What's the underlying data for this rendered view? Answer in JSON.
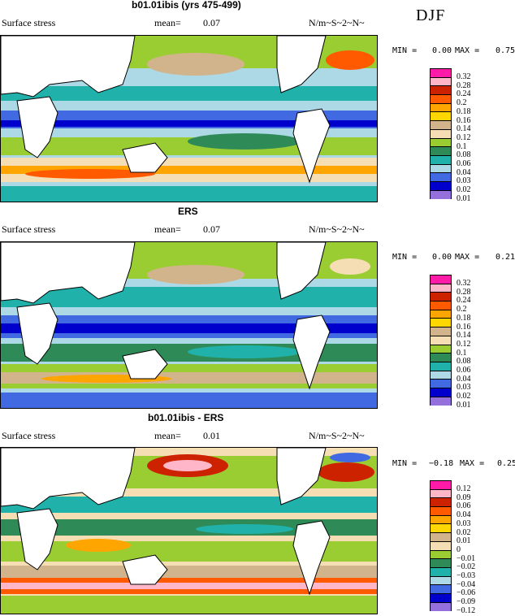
{
  "season_label": "DJF",
  "panels": [
    {
      "title": "b01.01ibis (yrs 475-499)",
      "field_label": "Surface stress",
      "mean_label": "mean=",
      "mean_value": "0.07",
      "units": "N/m~S~2~N~",
      "min_label": "MIN =",
      "min_value": "0.00",
      "max_label": "MAX =",
      "max_value": "0.75",
      "colorbar": {
        "levels": [
          "0.32",
          "0.28",
          "0.24",
          "0.2",
          "0.18",
          "0.16",
          "0.14",
          "0.12",
          "0.1",
          "0.08",
          "0.06",
          "0.04",
          "0.03",
          "0.02",
          "0.01"
        ],
        "colors": [
          "#ff1aa8",
          "#ffb6c8",
          "#cc2200",
          "#ff5a00",
          "#ffa500",
          "#ffd700",
          "#d2b48c",
          "#f5deb3",
          "#9acd32",
          "#2e8b57",
          "#20b2aa",
          "#add8e6",
          "#4169e1",
          "#0000cd",
          "#9370db"
        ]
      }
    },
    {
      "title": "ERS",
      "field_label": "Surface stress",
      "mean_label": "mean=",
      "mean_value": "0.07",
      "units": "N/m~S~2~N~",
      "min_label": "MIN =",
      "min_value": "0.00",
      "max_label": "MAX =",
      "max_value": "0.21",
      "colorbar": {
        "levels": [
          "0.32",
          "0.28",
          "0.24",
          "0.2",
          "0.18",
          "0.16",
          "0.14",
          "0.12",
          "0.1",
          "0.08",
          "0.06",
          "0.04",
          "0.03",
          "0.02",
          "0.01"
        ],
        "colors": [
          "#ff1aa8",
          "#ffb6c8",
          "#cc2200",
          "#ff5a00",
          "#ffa500",
          "#ffd700",
          "#d2b48c",
          "#f5deb3",
          "#9acd32",
          "#2e8b57",
          "#20b2aa",
          "#add8e6",
          "#4169e1",
          "#0000cd",
          "#9370db"
        ]
      }
    },
    {
      "title": "b01.01ibis - ERS",
      "field_label": "Surface stress",
      "mean_label": "mean=",
      "mean_value": "0.01",
      "units": "N/m~S~2~N~",
      "min_label": "MIN =",
      "min_value": "−0.18",
      "max_label": "MAX =",
      "max_value": "0.25",
      "colorbar": {
        "levels": [
          "0.12",
          "0.09",
          "0.06",
          "0.04",
          "0.03",
          "0.02",
          "0.01",
          "0",
          "−0.01",
          "−0.02",
          "−0.03",
          "−0.04",
          "−0.06",
          "−0.09",
          "−0.12"
        ],
        "colors": [
          "#ff1aa8",
          "#ffb6c8",
          "#cc2200",
          "#ff5a00",
          "#ffa500",
          "#ffd700",
          "#d2b48c",
          "#f5deb3",
          "#9acd32",
          "#2e8b57",
          "#20b2aa",
          "#add8e6",
          "#4169e1",
          "#0000cd",
          "#9370db"
        ]
      }
    }
  ]
}
